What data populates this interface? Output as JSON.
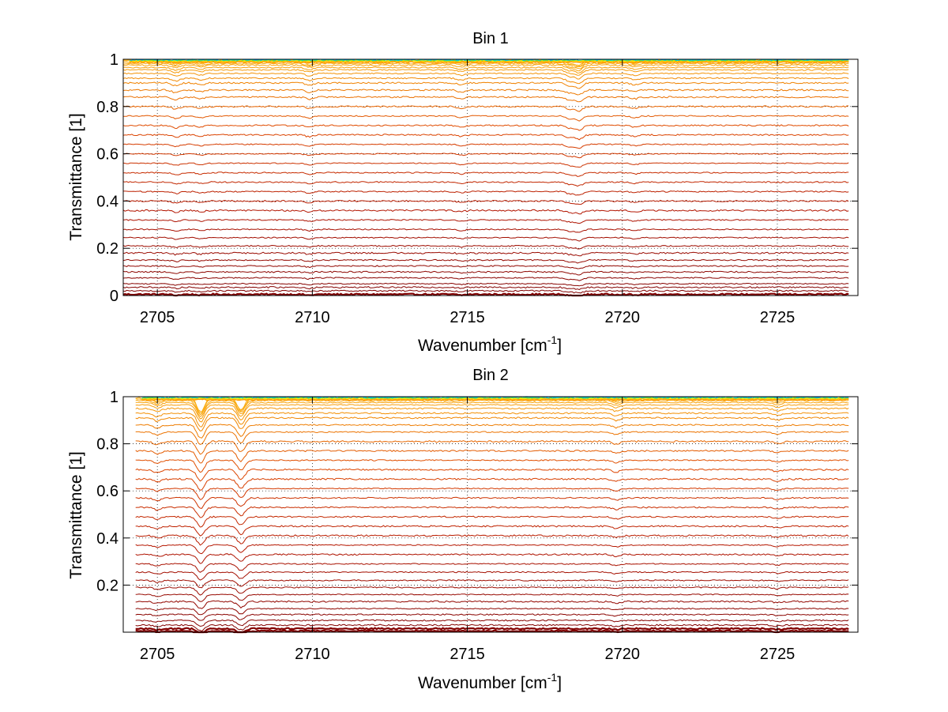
{
  "chart_data": [
    {
      "type": "line",
      "title": "Bin 1",
      "xlabel": "Wavenumber [cm",
      "xlabel_sup": "-1",
      "xlabel_suffix": "]",
      "ylabel": "Transmittance [1]",
      "xlim": [
        2703.9,
        2727.6
      ],
      "ylim": [
        0,
        1.0
      ],
      "xticks": [
        2705,
        2710,
        2715,
        2720,
        2725
      ],
      "yticks": [
        0,
        0.2,
        0.4,
        0.6,
        0.8,
        1
      ],
      "ytick_labels": [
        "0",
        "0.2",
        "0.4",
        "0.6",
        "0.8",
        "1"
      ],
      "grid": true,
      "series_levels": [
        0.005,
        0.02,
        0.035,
        0.05,
        0.075,
        0.1,
        0.125,
        0.15,
        0.18,
        0.21,
        0.245,
        0.28,
        0.32,
        0.36,
        0.4,
        0.44,
        0.48,
        0.52,
        0.56,
        0.6,
        0.64,
        0.68,
        0.72,
        0.76,
        0.8,
        0.84,
        0.87,
        0.9,
        0.92,
        0.94,
        0.955,
        0.965,
        0.975,
        0.982,
        0.988,
        0.993,
        0.997
      ],
      "series_x_range": [
        2703.9,
        2727.3
      ],
      "absorption_features": [
        {
          "x": 2705.6,
          "depth": 0.012
        },
        {
          "x": 2706.4,
          "depth": 0.008
        },
        {
          "x": 2709.9,
          "depth": 0.01
        },
        {
          "x": 2714.8,
          "depth": 0.008
        },
        {
          "x": 2718.3,
          "depth": 0.014
        },
        {
          "x": 2718.6,
          "depth": 0.022
        },
        {
          "x": 2720.4,
          "depth": 0.008
        }
      ]
    },
    {
      "type": "line",
      "title": "Bin 2",
      "xlabel": "Wavenumber [cm",
      "xlabel_sup": "-1",
      "xlabel_suffix": "]",
      "ylabel": "Transmittance [1]",
      "xlim": [
        2703.9,
        2727.6
      ],
      "ylim": [
        0,
        1.0
      ],
      "xticks": [
        2705,
        2710,
        2715,
        2720,
        2725
      ],
      "yticks": [
        0.2,
        0.4,
        0.6,
        0.8,
        1
      ],
      "ytick_labels": [
        "0.2",
        "0.4",
        "0.6",
        "0.8",
        "1"
      ],
      "grid": true,
      "series_levels": [
        0.005,
        0.015,
        0.03,
        0.05,
        0.075,
        0.1,
        0.13,
        0.16,
        0.19,
        0.22,
        0.255,
        0.29,
        0.33,
        0.37,
        0.41,
        0.45,
        0.49,
        0.53,
        0.57,
        0.61,
        0.65,
        0.69,
        0.73,
        0.77,
        0.81,
        0.85,
        0.88,
        0.91,
        0.93,
        0.95,
        0.965,
        0.975,
        0.983,
        0.99,
        0.995
      ],
      "series_x_range": [
        2704.3,
        2727.3
      ],
      "absorption_features": [
        {
          "x": 2706.4,
          "depth": 0.06
        },
        {
          "x": 2707.7,
          "depth": 0.05
        },
        {
          "x": 2705.0,
          "depth": 0.015
        },
        {
          "x": 2719.8,
          "depth": 0.012
        },
        {
          "x": 2725.0,
          "depth": 0.01
        }
      ]
    }
  ]
}
